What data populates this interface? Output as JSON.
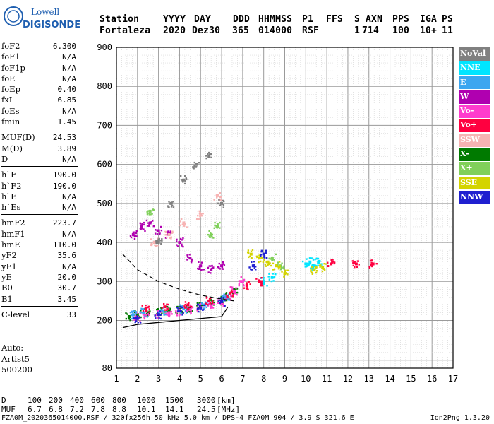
{
  "logo": {
    "line1": "Lowell",
    "line2": "DIGISONDE"
  },
  "header": {
    "labels": [
      "Station",
      "YYYY",
      "DAY",
      "DDD",
      "HHMMSS",
      "P1",
      "FFS",
      "S",
      "AXN",
      "PPS",
      "IGA",
      "PS"
    ],
    "values": [
      "Fortaleza",
      "2020",
      "Dez30",
      "365",
      "014000",
      "RSF",
      "",
      "1",
      "714",
      "100",
      "10+",
      "11"
    ]
  },
  "params": {
    "group1": [
      {
        "name": "foF2",
        "value": "6.300"
      },
      {
        "name": "foF1",
        "value": "N/A"
      },
      {
        "name": "foF1p",
        "value": "N/A"
      },
      {
        "name": "foE",
        "value": "N/A"
      },
      {
        "name": "foEp",
        "value": "0.40"
      },
      {
        "name": "fxI",
        "value": "6.85"
      },
      {
        "name": "foEs",
        "value": "N/A"
      },
      {
        "name": "fmin",
        "value": "1.45"
      }
    ],
    "group2": [
      {
        "name": "MUF(D)",
        "value": "24.53"
      },
      {
        "name": "M(D)",
        "value": "3.89"
      },
      {
        "name": "D",
        "value": "N/A"
      }
    ],
    "group3": [
      {
        "name": "h`F",
        "value": "190.0"
      },
      {
        "name": "h`F2",
        "value": "190.0"
      },
      {
        "name": "h`E",
        "value": "N/A"
      },
      {
        "name": "h`Es",
        "value": "N/A"
      }
    ],
    "group4": [
      {
        "name": "hmF2",
        "value": "223.7"
      },
      {
        "name": "hmF1",
        "value": "N/A"
      },
      {
        "name": "hmE",
        "value": "110.0"
      },
      {
        "name": "yF2",
        "value": "35.6"
      },
      {
        "name": "yF1",
        "value": "N/A"
      },
      {
        "name": "yE",
        "value": "20.0"
      },
      {
        "name": "B0",
        "value": "30.7"
      },
      {
        "name": "B1",
        "value": "3.45"
      }
    ],
    "group5": [
      {
        "name": "C-level",
        "value": "33"
      }
    ]
  },
  "auto": {
    "line1": "Auto:",
    "line2": "Artist5",
    "line3": "500200"
  },
  "legend": [
    {
      "label": "NoVal",
      "color": "#808080"
    },
    {
      "label": "NNE",
      "color": "#00e5ff"
    },
    {
      "label": "E",
      "color": "#3ba6f0"
    },
    {
      "label": "W",
      "color": "#b000b0"
    },
    {
      "label": "Vo-",
      "color": "#ff3ccd"
    },
    {
      "label": "Vo+",
      "color": "#ff0040"
    },
    {
      "label": "SSW",
      "color": "#f7b3b3"
    },
    {
      "label": "X-",
      "color": "#007a00"
    },
    {
      "label": "X+",
      "color": "#80d05a"
    },
    {
      "label": "SSE",
      "color": "#d4d400"
    },
    {
      "label": "NNW",
      "color": "#2020d0"
    }
  ],
  "bottom": {
    "d_label": "D",
    "d_values": [
      "100",
      "200",
      "400",
      "600",
      "800",
      "1000",
      "1500",
      "3000",
      "[km]"
    ],
    "muf_label": "MUF",
    "muf_values": [
      "6.7",
      "6.8",
      "7.2",
      "7.8",
      "8.8",
      "10.1",
      "14.1",
      "24.5",
      "[MHz]"
    ],
    "footer": "FZA0M_2020365014000.RSF / 320fx256h 50 kHz 5.0 km / DPS-4 FZA0M 904 / 3.9 S 321.6 E",
    "footer_right": "Ion2Png 1.3.20"
  },
  "chart_data": {
    "type": "scatter",
    "title": "",
    "xlabel": "",
    "ylabel": "",
    "xlim": [
      1,
      17
    ],
    "ylim": [
      80,
      900
    ],
    "x_ticks": [
      1,
      2,
      3,
      4,
      5,
      6,
      7,
      8,
      9,
      10,
      11,
      12,
      13,
      14,
      15,
      16,
      17
    ],
    "y_ticks": [
      80,
      200,
      300,
      400,
      500,
      600,
      700,
      800,
      900
    ],
    "grid": true,
    "series": [
      {
        "name": "X-",
        "color": "#007a00",
        "points": [
          [
            1.6,
            210
          ],
          [
            2,
            215
          ],
          [
            2.5,
            220
          ],
          [
            3,
            222
          ],
          [
            3.5,
            225
          ],
          [
            4,
            228
          ],
          [
            4.5,
            232
          ],
          [
            5,
            236
          ],
          [
            5.5,
            242
          ],
          [
            6,
            250
          ],
          [
            6.3,
            262
          ],
          [
            6.6,
            280
          ]
        ]
      },
      {
        "name": "Vo-",
        "color": "#ff3ccd",
        "points": [
          [
            2,
            208
          ],
          [
            2.4,
            212
          ],
          [
            3,
            216
          ],
          [
            3.5,
            220
          ],
          [
            4,
            224
          ],
          [
            4.5,
            228
          ],
          [
            5,
            233
          ],
          [
            5.5,
            238
          ],
          [
            6,
            246
          ],
          [
            6.3,
            258
          ],
          [
            6.6,
            275
          ],
          [
            7,
            300
          ]
        ]
      },
      {
        "name": "W",
        "color": "#b000b0",
        "points": [
          [
            1.8,
            420
          ],
          [
            2.2,
            440
          ],
          [
            2.6,
            450
          ],
          [
            3,
            430
          ],
          [
            3.5,
            420
          ],
          [
            4,
            400
          ],
          [
            4.5,
            360
          ],
          [
            5,
            340
          ],
          [
            5.5,
            330
          ],
          [
            6,
            340
          ]
        ]
      },
      {
        "name": "NNE",
        "color": "#00e5ff",
        "points": [
          [
            10,
            345
          ],
          [
            10.2,
            350
          ],
          [
            10.4,
            340
          ],
          [
            10.6,
            348
          ],
          [
            8,
            300
          ],
          [
            8.4,
            310
          ]
        ]
      },
      {
        "name": "E",
        "color": "#3ba6f0",
        "points": [
          [
            1.8,
            215
          ],
          [
            2.3,
            220
          ],
          [
            3.2,
            225
          ],
          [
            4.2,
            230
          ],
          [
            5.2,
            240
          ],
          [
            6.2,
            260
          ]
        ]
      },
      {
        "name": "Vo+",
        "color": "#ff0040",
        "points": [
          [
            2.4,
            230
          ],
          [
            3.3,
            235
          ],
          [
            4.4,
            240
          ],
          [
            5.4,
            250
          ],
          [
            6.4,
            270
          ],
          [
            7.2,
            290
          ],
          [
            7.8,
            300
          ],
          [
            11.2,
            345
          ],
          [
            12.4,
            345
          ],
          [
            13.2,
            345
          ]
        ]
      },
      {
        "name": "SSW",
        "color": "#f7b3b3",
        "points": [
          [
            2.8,
            400
          ],
          [
            3.5,
            420
          ],
          [
            4.2,
            450
          ],
          [
            5,
            470
          ],
          [
            5.8,
            520
          ]
        ]
      },
      {
        "name": "X+",
        "color": "#80d05a",
        "points": [
          [
            5.5,
            420
          ],
          [
            5.8,
            440
          ],
          [
            2.6,
            480
          ],
          [
            8.4,
            360
          ],
          [
            8.8,
            340
          ]
        ]
      },
      {
        "name": "SSE",
        "color": "#d4d400",
        "points": [
          [
            7.4,
            370
          ],
          [
            7.8,
            360
          ],
          [
            8.2,
            350
          ],
          [
            8.6,
            340
          ],
          [
            9,
            320
          ],
          [
            10.4,
            330
          ],
          [
            10.8,
            335
          ]
        ]
      },
      {
        "name": "NNW",
        "color": "#2020d0",
        "points": [
          [
            2,
            205
          ],
          [
            3,
            215
          ],
          [
            4,
            225
          ],
          [
            5,
            232
          ],
          [
            6,
            248
          ],
          [
            7.5,
            340
          ],
          [
            8,
            370
          ]
        ]
      },
      {
        "name": "NoVal",
        "color": "#808080",
        "points": [
          [
            3,
            400
          ],
          [
            3.6,
            500
          ],
          [
            4.2,
            560
          ],
          [
            4.8,
            600
          ],
          [
            5.4,
            620
          ],
          [
            6,
            500
          ]
        ]
      }
    ],
    "profile_line": {
      "x": [
        1.3,
        2,
        3,
        4,
        5,
        6,
        6.3
      ],
      "y": [
        182,
        190,
        195,
        200,
        205,
        210,
        235
      ]
    },
    "dashed_line": {
      "x": [
        1.3,
        2,
        3,
        4,
        5,
        6,
        6.6
      ],
      "y": [
        370,
        330,
        300,
        280,
        265,
        255,
        250
      ]
    }
  }
}
